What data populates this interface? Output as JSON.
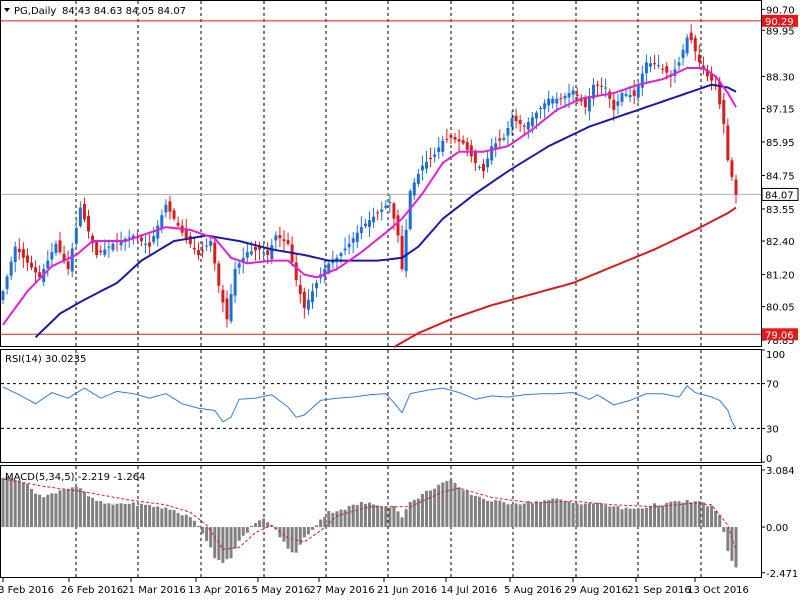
{
  "chart_data": {
    "type": "candlestick",
    "symbol_label": "PG,Daily",
    "ohlc_label": "84.43 84.63 84.05 84.07",
    "colors": {
      "background": "#ffffff",
      "bull": "#1f6fd6",
      "bear": "#d81c1c",
      "ma_fast": "#e020d8",
      "ma_mid": "#1a1aa8",
      "ma_slow": "#d81c1c",
      "level_line": "#d81c1c",
      "level_badge_bg": "#e11b1b",
      "last_line": "#b0b0b0",
      "rsi_line": "#2f7fd8",
      "macd_hist": "#808080",
      "macd_signal": "#d81c1c"
    },
    "x_labels": [
      "3 Feb 2016",
      "26 Feb 2016",
      "21 Mar 2016",
      "13 Apr 2016",
      "5 May 2016",
      "27 May 2016",
      "21 Jun 2016",
      "14 Jul 2016",
      "5 Aug 2016",
      "29 Aug 2016",
      "21 Sep 2016",
      "13 Oct 2016"
    ],
    "price_axis": {
      "ylim": [
        78.64,
        91.0
      ],
      "ticks": [
        "90.70",
        "89.95",
        "88.30",
        "87.15",
        "85.95",
        "84.75",
        "83.55",
        "82.40",
        "81.20",
        "80.05",
        "78.85"
      ],
      "levels": {
        "upper": "90.29",
        "lower": "79.06",
        "last": "84.07"
      }
    },
    "anchors": {
      "close": [
        [
          0,
          80.6
        ],
        [
          3,
          82.2
        ],
        [
          5,
          81.8
        ],
        [
          9,
          81.1
        ],
        [
          13,
          82.3
        ],
        [
          16,
          81.4
        ],
        [
          19,
          83.6
        ],
        [
          23,
          81.9
        ],
        [
          27,
          82.3
        ],
        [
          32,
          82.6
        ],
        [
          36,
          82.2
        ],
        [
          40,
          83.7
        ],
        [
          44,
          82.7
        ],
        [
          48,
          81.9
        ],
        [
          51,
          82.4
        ],
        [
          53,
          80.8
        ],
        [
          55,
          79.6
        ],
        [
          57,
          81.4
        ],
        [
          60,
          82.0
        ],
        [
          63,
          82.1
        ],
        [
          65,
          81.9
        ],
        [
          67,
          82.6
        ],
        [
          70,
          82.3
        ],
        [
          72,
          81.0
        ],
        [
          74,
          80.0
        ],
        [
          76,
          80.6
        ],
        [
          78,
          81.2
        ],
        [
          80,
          81.6
        ],
        [
          82,
          81.8
        ],
        [
          85,
          82.3
        ],
        [
          88,
          82.9
        ],
        [
          92,
          83.4
        ],
        [
          95,
          83.8
        ],
        [
          97,
          82.6
        ],
        [
          98,
          81.4
        ],
        [
          100,
          84.2
        ],
        [
          103,
          85.1
        ],
        [
          106,
          85.5
        ],
        [
          108,
          86.0
        ],
        [
          110,
          86.1
        ],
        [
          113,
          85.9
        ],
        [
          116,
          85.2
        ],
        [
          118,
          84.9
        ],
        [
          120,
          85.8
        ],
        [
          123,
          86.1
        ],
        [
          125,
          86.8
        ],
        [
          128,
          86.5
        ],
        [
          131,
          87.0
        ],
        [
          134,
          87.5
        ],
        [
          137,
          87.5
        ],
        [
          140,
          87.8
        ],
        [
          143,
          87.2
        ],
        [
          145,
          88.0
        ],
        [
          148,
          87.9
        ],
        [
          150,
          87.1
        ],
        [
          152,
          87.7
        ],
        [
          155,
          87.6
        ],
        [
          158,
          88.8
        ],
        [
          161,
          88.7
        ],
        [
          164,
          88.3
        ],
        [
          166,
          88.8
        ],
        [
          168,
          89.7
        ],
        [
          169,
          89.6
        ],
        [
          171,
          88.8
        ],
        [
          173,
          88.3
        ],
        [
          175,
          88.0
        ],
        [
          177,
          86.6
        ],
        [
          178,
          85.3
        ],
        [
          179,
          84.7
        ],
        [
          180,
          84.07
        ]
      ],
      "ma_fast": [
        [
          0,
          79.4
        ],
        [
          6,
          80.6
        ],
        [
          12,
          81.5
        ],
        [
          18,
          81.9
        ],
        [
          22,
          82.4
        ],
        [
          30,
          82.4
        ],
        [
          40,
          82.9
        ],
        [
          46,
          82.8
        ],
        [
          52,
          82.5
        ],
        [
          56,
          81.8
        ],
        [
          60,
          81.6
        ],
        [
          66,
          81.7
        ],
        [
          70,
          81.7
        ],
        [
          74,
          81.2
        ],
        [
          77,
          81.1
        ],
        [
          82,
          81.4
        ],
        [
          88,
          82.0
        ],
        [
          94,
          82.7
        ],
        [
          98,
          83.2
        ],
        [
          103,
          84.1
        ],
        [
          108,
          85.2
        ],
        [
          112,
          85.6
        ],
        [
          118,
          85.6
        ],
        [
          124,
          85.8
        ],
        [
          130,
          86.4
        ],
        [
          136,
          87.1
        ],
        [
          142,
          87.5
        ],
        [
          150,
          87.7
        ],
        [
          156,
          88.0
        ],
        [
          162,
          88.2
        ],
        [
          168,
          88.6
        ],
        [
          172,
          88.6
        ],
        [
          175,
          88.3
        ],
        [
          178,
          87.7
        ],
        [
          180,
          87.2
        ]
      ],
      "ma_mid": [
        [
          8,
          78.95
        ],
        [
          14,
          79.8
        ],
        [
          20,
          80.3
        ],
        [
          28,
          80.9
        ],
        [
          34,
          81.7
        ],
        [
          42,
          82.4
        ],
        [
          50,
          82.6
        ],
        [
          58,
          82.4
        ],
        [
          66,
          82.1
        ],
        [
          74,
          81.9
        ],
        [
          80,
          81.7
        ],
        [
          86,
          81.7
        ],
        [
          92,
          81.7
        ],
        [
          98,
          81.8
        ],
        [
          102,
          82.2
        ],
        [
          108,
          83.2
        ],
        [
          116,
          84.1
        ],
        [
          124,
          84.9
        ],
        [
          134,
          85.8
        ],
        [
          144,
          86.5
        ],
        [
          154,
          87.0
        ],
        [
          162,
          87.4
        ],
        [
          170,
          87.8
        ],
        [
          174,
          88.0
        ],
        [
          178,
          87.9
        ],
        [
          180,
          87.75
        ]
      ],
      "ma_slow": [
        [
          96,
          78.6
        ],
        [
          102,
          79.1
        ],
        [
          110,
          79.6
        ],
        [
          120,
          80.1
        ],
        [
          130,
          80.5
        ],
        [
          140,
          80.9
        ],
        [
          150,
          81.5
        ],
        [
          160,
          82.1
        ],
        [
          170,
          82.8
        ],
        [
          178,
          83.4
        ],
        [
          180,
          83.6
        ]
      ],
      "rsi": [
        [
          0,
          67
        ],
        [
          4,
          60
        ],
        [
          8,
          52
        ],
        [
          12,
          62
        ],
        [
          16,
          57
        ],
        [
          20,
          66
        ],
        [
          24,
          57
        ],
        [
          28,
          63
        ],
        [
          32,
          61
        ],
        [
          36,
          57
        ],
        [
          40,
          61
        ],
        [
          44,
          52
        ],
        [
          48,
          48
        ],
        [
          52,
          46
        ],
        [
          54,
          36
        ],
        [
          56,
          40
        ],
        [
          58,
          56
        ],
        [
          62,
          57
        ],
        [
          66,
          60
        ],
        [
          70,
          49
        ],
        [
          72,
          40
        ],
        [
          74,
          42
        ],
        [
          78,
          55
        ],
        [
          82,
          57
        ],
        [
          86,
          58
        ],
        [
          90,
          60
        ],
        [
          94,
          61
        ],
        [
          96,
          53
        ],
        [
          98,
          44
        ],
        [
          100,
          61
        ],
        [
          104,
          64
        ],
        [
          108,
          66
        ],
        [
          112,
          62
        ],
        [
          116,
          56
        ],
        [
          120,
          59
        ],
        [
          124,
          58
        ],
        [
          128,
          60
        ],
        [
          132,
          61
        ],
        [
          136,
          61
        ],
        [
          140,
          62
        ],
        [
          144,
          56
        ],
        [
          146,
          60
        ],
        [
          150,
          51
        ],
        [
          154,
          55
        ],
        [
          158,
          61
        ],
        [
          162,
          61
        ],
        [
          166,
          58
        ],
        [
          168,
          68
        ],
        [
          170,
          62
        ],
        [
          174,
          58
        ],
        [
          176,
          55
        ],
        [
          178,
          46
        ],
        [
          179,
          36
        ],
        [
          180,
          30.0235
        ]
      ],
      "macd": [
        [
          0,
          2.7
        ],
        [
          4,
          2.6
        ],
        [
          8,
          1.9
        ],
        [
          10,
          1.6
        ],
        [
          14,
          2.0
        ],
        [
          18,
          2.2
        ],
        [
          22,
          1.5
        ],
        [
          26,
          1.2
        ],
        [
          30,
          1.3
        ],
        [
          34,
          1.2
        ],
        [
          38,
          1.1
        ],
        [
          42,
          0.9
        ],
        [
          46,
          0.5
        ],
        [
          48,
          0.1
        ],
        [
          50,
          -0.7
        ],
        [
          52,
          -1.6
        ],
        [
          54,
          -1.9
        ],
        [
          56,
          -1.6
        ],
        [
          58,
          -0.8
        ],
        [
          60,
          -0.3
        ],
        [
          62,
          0.3
        ],
        [
          64,
          0.4
        ],
        [
          66,
          0.1
        ],
        [
          68,
          -0.5
        ],
        [
          70,
          -1.2
        ],
        [
          72,
          -1.4
        ],
        [
          74,
          -0.6
        ],
        [
          76,
          -0.1
        ],
        [
          78,
          0.4
        ],
        [
          80,
          0.8
        ],
        [
          84,
          1.0
        ],
        [
          88,
          1.3
        ],
        [
          92,
          1.2
        ],
        [
          96,
          1.1
        ],
        [
          98,
          0.6
        ],
        [
          100,
          1.3
        ],
        [
          104,
          1.9
        ],
        [
          108,
          2.4
        ],
        [
          110,
          2.5
        ],
        [
          112,
          2.1
        ],
        [
          116,
          1.7
        ],
        [
          120,
          1.4
        ],
        [
          124,
          1.3
        ],
        [
          128,
          1.3
        ],
        [
          132,
          1.4
        ],
        [
          136,
          1.5
        ],
        [
          140,
          1.3
        ],
        [
          144,
          1.3
        ],
        [
          148,
          1.2
        ],
        [
          152,
          1.0
        ],
        [
          156,
          1.0
        ],
        [
          160,
          1.2
        ],
        [
          164,
          1.3
        ],
        [
          168,
          1.4
        ],
        [
          172,
          1.3
        ],
        [
          174,
          1.1
        ],
        [
          176,
          0.6
        ],
        [
          178,
          -1.3
        ],
        [
          180,
          -2.219
        ]
      ],
      "macd_signal": [
        [
          0,
          2.6
        ],
        [
          10,
          2.2
        ],
        [
          20,
          1.9
        ],
        [
          30,
          1.5
        ],
        [
          40,
          1.2
        ],
        [
          46,
          0.8
        ],
        [
          50,
          0.1
        ],
        [
          54,
          -1.2
        ],
        [
          58,
          -1.1
        ],
        [
          62,
          -0.3
        ],
        [
          66,
          0.1
        ],
        [
          70,
          -0.6
        ],
        [
          74,
          -0.8
        ],
        [
          78,
          -0.2
        ],
        [
          82,
          0.6
        ],
        [
          90,
          1.1
        ],
        [
          100,
          1.1
        ],
        [
          108,
          1.9
        ],
        [
          112,
          2.1
        ],
        [
          120,
          1.6
        ],
        [
          130,
          1.3
        ],
        [
          140,
          1.4
        ],
        [
          150,
          1.2
        ],
        [
          160,
          1.1
        ],
        [
          170,
          1.3
        ],
        [
          174,
          1.2
        ],
        [
          178,
          0.1
        ],
        [
          180,
          -1.264
        ]
      ]
    },
    "rsi": {
      "label": "RSI(14) 30.0235",
      "ylim": [
        0,
        100
      ],
      "ticks": [
        "100",
        "70",
        "30",
        "0"
      ],
      "levels": [
        70,
        30
      ]
    },
    "macd": {
      "label": "MACD(5,34,5) -2.219 -1.264",
      "ylim": [
        -2.7,
        3.3
      ],
      "ticks": [
        "3.084",
        "0.00",
        "-2.471"
      ]
    }
  }
}
